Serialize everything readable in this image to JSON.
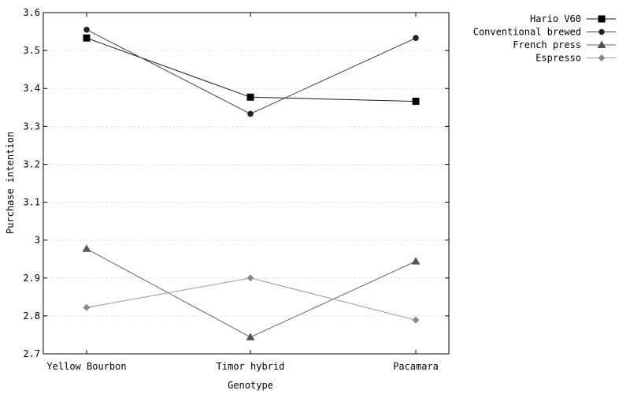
{
  "chart_data": {
    "type": "line",
    "title": "",
    "xlabel": "Genotype",
    "ylabel": "Purchase intention",
    "categories": [
      "Yellow Bourbon",
      "Timor hybrid",
      "Pacamara"
    ],
    "ylim": [
      2.7,
      3.6
    ],
    "yticks": [
      2.7,
      2.8,
      2.9,
      3.0,
      3.1,
      3.2,
      3.3,
      3.4,
      3.5,
      3.6
    ],
    "ytick_labels": [
      "2.7",
      "2.8",
      "2.9",
      "3",
      "3.1",
      "3.2",
      "3.3",
      "3.4",
      "3.5",
      "3.6"
    ],
    "grid": "horizontal",
    "legend_position": "top-right, outside plot",
    "series": [
      {
        "name": "Hario V60",
        "values": [
          3.533,
          3.377,
          3.366
        ],
        "marker": "square",
        "color": "#000000",
        "line_color": "#1a1a1a"
      },
      {
        "name": "Conventional brewed",
        "values": [
          3.555,
          3.333,
          3.533
        ],
        "marker": "circle",
        "color": "#222222",
        "line_color": "#444444"
      },
      {
        "name": "French press",
        "values": [
          2.977,
          2.744,
          2.944
        ],
        "marker": "triangle",
        "color": "#555555",
        "line_color": "#666666"
      },
      {
        "name": "Espresso",
        "values": [
          2.822,
          2.9,
          2.789
        ],
        "marker": "diamond",
        "color": "#8a8a8a",
        "line_color": "#999999"
      }
    ]
  }
}
